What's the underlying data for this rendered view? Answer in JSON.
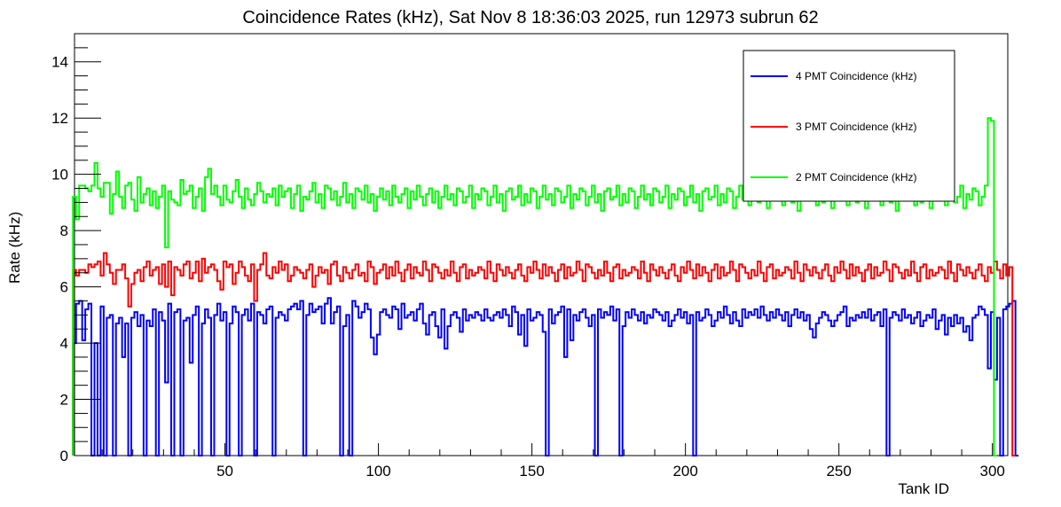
{
  "chart_data": {
    "type": "line",
    "title": "Coincidence Rates (kHz), Sat Nov  8 18:36:03 2025, run 12973 subrun 62",
    "xlabel": "Tank ID",
    "ylabel": "Rate (kHz)",
    "xlim": [
      1,
      305
    ],
    "ylim": [
      0,
      15
    ],
    "x_ticks": [
      50,
      100,
      150,
      200,
      250,
      300
    ],
    "y_ticks": [
      0,
      2,
      4,
      6,
      8,
      10,
      12,
      14
    ],
    "grid": false,
    "legend_position": "top-right",
    "style": "step histogram",
    "series": [
      {
        "name": "4 PMT Coincidence (kHz)",
        "color": "#0000ff",
        "x_start": 1,
        "values": [
          4,
          5.4,
          5.5,
          4.1,
          5.2,
          5.4,
          0,
          4.0,
          0,
          5.3,
          0,
          4.9,
          5.0,
          0,
          4.7,
          4.9,
          3.5,
          4.7,
          0,
          4.9,
          5.1,
          4.6,
          5.0,
          0,
          4.8,
          4.6,
          5.2,
          0,
          5.1,
          4.8,
          2.6,
          5.4,
          0,
          5.1,
          5.2,
          0,
          4.8,
          4.9,
          3.3,
          5.0,
          5.3,
          0,
          4.7,
          5.2,
          4.9,
          0,
          5.0,
          5.4,
          4.8,
          5.1,
          0,
          4.7,
          5.3,
          5.1,
          0,
          5.0,
          5.2,
          4.8,
          5.4,
          0,
          5.1,
          5.0,
          4.7,
          5.2,
          5.3,
          0,
          4.9,
          5.1,
          5.0,
          4.8,
          5.2,
          5.3,
          5.4,
          5.2,
          5.5,
          0,
          5.0,
          5.4,
          5.1,
          5.2,
          5.3,
          4.7,
          5.4,
          5.6,
          4.7,
          5.1,
          5.3,
          0,
          4.6,
          5.0,
          0,
          5.5,
          5.3,
          4.9,
          5.1,
          5.4,
          5.2,
          4.2,
          3.6,
          4.3,
          5.1,
          5.2,
          5.0,
          4.9,
          5.3,
          5.2,
          4.5,
          5.4,
          4.9,
          5.0,
          5.1,
          4.8,
          5.2,
          5.4,
          4.7,
          4.3,
          5.0,
          5.1,
          4.6,
          4.2,
          5.2,
          3.8,
          4.6,
          5.0,
          5.1,
          4.9,
          4.4,
          5.2,
          4.8,
          5.0,
          4.9,
          5.1,
          5.0,
          4.8,
          5.2,
          4.9,
          4.8,
          5.0,
          5.1,
          4.9,
          5.2,
          5.0,
          4.6,
          5.3,
          5.1,
          4.3,
          5.0,
          3.9,
          5.2,
          4.8,
          4.9,
          5.1,
          5.0,
          4.4,
          0,
          5.2,
          4.7,
          5.0,
          5.1,
          5.3,
          3.5,
          5.2,
          4.1,
          5.0,
          4.8,
          5.1,
          5.2,
          4.9,
          4.6,
          5.0,
          0,
          5.2,
          4.9,
          5.1,
          5.0,
          5.3,
          4.8,
          5.2,
          0,
          4.6,
          5.1,
          4.9,
          5.2,
          5.0,
          4.8,
          5.1,
          4.7,
          5.0,
          4.9,
          5.2,
          5.1,
          5.0,
          4.8,
          5.1,
          4.6,
          4.8,
          5.0,
          5.2,
          4.9,
          5.1,
          4.7,
          5.0,
          0,
          5.1,
          4.8,
          4.9,
          5.2,
          5.0,
          4.6,
          4.8,
          5.1,
          4.9,
          5.3,
          5.0,
          4.7,
          5.1,
          4.8,
          4.6,
          5.2,
          4.9,
          5.1,
          5.0,
          5.2,
          4.9,
          5.3,
          5.0,
          4.8,
          5.1,
          4.9,
          5.2,
          5.0,
          4.8,
          5.1,
          4.6,
          5.0,
          5.2,
          4.9,
          5.1,
          4.8,
          5.0,
          4.5,
          4.2,
          4.7,
          4.9,
          5.1,
          5.0,
          4.8,
          4.6,
          4.8,
          5.0,
          5.1,
          5.3,
          4.6,
          4.9,
          4.8,
          5.0,
          4.9,
          5.1,
          4.9,
          5.2,
          4.8,
          5.0,
          5.1,
          4.6,
          5.2,
          0,
          4.9,
          5.1,
          5.0,
          4.8,
          5.2,
          4.9,
          5.0,
          4.7,
          4.9,
          5.1,
          4.6,
          4.8,
          5.0,
          4.9,
          5.2,
          4.5,
          4.8,
          5.0,
          4.3,
          4.9,
          4.6,
          5.0,
          4.7,
          4.9,
          4.4,
          4.6,
          4.1,
          4.9,
          5.0,
          5.3,
          5.2,
          5.0,
          3.1,
          5.1,
          2.7,
          4.9,
          0,
          5.2,
          5.3,
          5.4,
          5.5,
          0
        ]
      },
      {
        "name": "3 PMT Coincidence (kHz)",
        "color": "#ff0000",
        "x_start": 1,
        "values": [
          6.6,
          6.4,
          6.6,
          6.6,
          6.5,
          6.8,
          6.7,
          6.8,
          6.9,
          6.4,
          7.2,
          6.8,
          6.5,
          6.1,
          6.6,
          6.6,
          6.8,
          6.3,
          5.3,
          6.1,
          6.5,
          6.6,
          6.2,
          6.7,
          6.9,
          6.4,
          6.6,
          6.7,
          6.1,
          6.8,
          6.0,
          6.9,
          5.7,
          6.7,
          6.6,
          6.4,
          6.8,
          6.9,
          6.3,
          6.5,
          6.9,
          6.2,
          7.0,
          6.5,
          6.7,
          6.8,
          6.6,
          6.2,
          5.9,
          6.9,
          6.7,
          6.8,
          6.1,
          6.5,
          6.9,
          6.7,
          6.4,
          6.2,
          6.8,
          5.5,
          6.6,
          6.8,
          7.2,
          6.4,
          6.3,
          6.7,
          6.5,
          6.9,
          6.6,
          6.8,
          6.2,
          6.4,
          6.7,
          6.6,
          6.5,
          6.3,
          6.6,
          6.8,
          6.0,
          6.4,
          6.7,
          6.5,
          6.6,
          6.1,
          6.8,
          6.9,
          6.4,
          6.2,
          6.7,
          6.5,
          6.3,
          6.6,
          6.8,
          6.4,
          6.5,
          6.2,
          6.9,
          6.7,
          6.1,
          6.5,
          6.6,
          6.8,
          6.3,
          6.7,
          6.4,
          6.9,
          6.5,
          6.2,
          6.6,
          6.8,
          6.3,
          6.7,
          6.5,
          6.4,
          6.9,
          6.6,
          6.2,
          6.8,
          6.7,
          6.5,
          6.3,
          6.6,
          6.4,
          6.9,
          6.5,
          6.2,
          6.7,
          6.8,
          6.3,
          6.6,
          6.4,
          6.5,
          6.7,
          6.6,
          6.3,
          6.9,
          6.5,
          6.2,
          6.8,
          6.6,
          6.4,
          6.7,
          6.5,
          6.3,
          6.6,
          6.8,
          6.4,
          6.2,
          6.7,
          6.5,
          6.9,
          6.6,
          6.3,
          6.8,
          6.4,
          6.7,
          6.5,
          6.2,
          6.6,
          6.8,
          6.3,
          6.7,
          6.4,
          6.5,
          6.9,
          6.6,
          6.2,
          6.8,
          6.7,
          6.5,
          6.3,
          6.6,
          6.4,
          6.9,
          6.5,
          6.2,
          6.7,
          6.8,
          6.3,
          6.6,
          6.4,
          6.5,
          6.7,
          6.6,
          6.3,
          6.9,
          6.5,
          6.2,
          6.8,
          6.6,
          6.4,
          6.7,
          6.5,
          6.3,
          6.6,
          6.8,
          6.4,
          6.2,
          6.7,
          6.5,
          6.9,
          6.6,
          6.3,
          6.8,
          6.4,
          6.7,
          6.5,
          6.2,
          6.6,
          6.8,
          6.3,
          6.7,
          6.4,
          6.5,
          6.9,
          6.6,
          6.2,
          6.8,
          6.7,
          6.5,
          6.3,
          6.6,
          6.4,
          6.9,
          6.5,
          6.2,
          6.7,
          6.8,
          6.3,
          6.6,
          6.4,
          6.5,
          6.7,
          6.6,
          6.3,
          6.9,
          6.5,
          6.2,
          6.8,
          6.6,
          6.4,
          6.7,
          6.5,
          6.3,
          6.6,
          6.8,
          6.4,
          6.2,
          6.7,
          6.5,
          6.9,
          6.6,
          6.3,
          6.8,
          6.4,
          6.7,
          6.5,
          6.2,
          6.6,
          6.8,
          6.3,
          6.7,
          6.4,
          6.5,
          6.9,
          6.6,
          6.2,
          6.8,
          6.7,
          6.5,
          6.3,
          6.6,
          6.4,
          6.9,
          6.5,
          6.2,
          6.7,
          6.8,
          6.3,
          6.6,
          6.4,
          6.5,
          6.7,
          6.6,
          6.3,
          6.9,
          6.5,
          6.2,
          6.8,
          6.6,
          6.4,
          6.7,
          6.5,
          6.3,
          6.6,
          6.8,
          6.4,
          6.2,
          6.7,
          6.5,
          6.9,
          6.6,
          6.3,
          6.8,
          6.4,
          6.7,
          0
        ]
      },
      {
        "name": "2 PMT Coincidence (kHz)",
        "color": "#00ff00",
        "x_start": 1,
        "values": [
          9.2,
          8.4,
          9.6,
          9.6,
          9.5,
          9.4,
          9.6,
          10.4,
          9.5,
          9.2,
          9.7,
          9.7,
          8.6,
          9.3,
          10.1,
          9.2,
          8.8,
          9.6,
          9.7,
          9.1,
          8.7,
          9.9,
          9.0,
          9.3,
          9.5,
          8.9,
          9.4,
          8.8,
          9.2,
          9.6,
          7.4,
          9.4,
          9.1,
          9.0,
          8.9,
          9.8,
          9.3,
          9.4,
          9.6,
          8.8,
          9.2,
          9.5,
          8.7,
          9.9,
          10.2,
          9.3,
          9.6,
          9.2,
          8.9,
          9.6,
          9.1,
          9.0,
          9.4,
          9.8,
          9.2,
          8.8,
          9.5,
          9.1,
          8.9,
          9.3,
          9.7,
          9.4,
          9.0,
          9.3,
          9.2,
          9.5,
          8.9,
          9.6,
          9.2,
          9.4,
          9.5,
          8.8,
          9.3,
          9.6,
          8.7,
          9.2,
          9.1,
          9.4,
          9.7,
          9.0,
          9.3,
          8.8,
          9.6,
          9.5,
          9.1,
          9.4,
          8.9,
          9.2,
          9.7,
          9.0,
          9.3,
          8.8,
          9.5,
          9.4,
          9.1,
          9.6,
          9.0,
          9.3,
          8.7,
          9.2,
          9.5,
          9.1,
          9.4,
          8.9,
          9.6,
          9.2,
          9.0,
          9.3,
          9.5,
          8.8,
          9.4,
          9.1,
          9.6,
          9.2,
          8.9,
          9.3,
          9.5,
          9.0,
          9.4,
          8.8,
          9.2,
          9.6,
          9.1,
          9.3,
          8.9,
          9.5,
          9.4,
          9.0,
          9.2,
          9.6,
          8.8,
          9.3,
          9.1,
          9.5,
          9.4,
          8.9,
          9.2,
          9.6,
          9.0,
          9.3,
          8.7,
          9.4,
          9.5,
          9.1,
          9.2,
          9.6,
          8.9,
          9.3,
          9.0,
          9.5,
          9.4,
          8.8,
          9.2,
          9.6,
          9.1,
          9.3,
          8.9,
          9.5,
          9.4,
          9.0,
          9.2,
          9.6,
          8.8,
          9.3,
          9.1,
          9.5,
          9.4,
          8.9,
          9.2,
          9.6,
          9.0,
          9.3,
          8.7,
          9.4,
          9.5,
          9.1,
          9.2,
          9.6,
          8.9,
          9.3,
          9.0,
          9.5,
          9.4,
          8.8,
          9.2,
          9.6,
          9.1,
          9.3,
          8.9,
          9.5,
          9.4,
          9.0,
          9.2,
          9.6,
          8.8,
          9.3,
          9.1,
          9.5,
          9.4,
          8.9,
          9.2,
          9.6,
          9.0,
          9.3,
          8.7,
          9.4,
          9.5,
          9.1,
          9.2,
          9.6,
          8.9,
          9.3,
          9.0,
          9.5,
          9.4,
          8.8,
          9.2,
          9.6,
          9.1,
          9.3,
          8.9,
          9.5,
          9.4,
          9.0,
          9.2,
          9.6,
          8.8,
          9.3,
          9.1,
          9.5,
          9.4,
          8.9,
          9.2,
          9.6,
          9.0,
          9.3,
          8.7,
          9.4,
          9.5,
          9.1,
          9.2,
          9.6,
          8.9,
          9.3,
          9.0,
          9.5,
          9.4,
          8.8,
          9.2,
          9.6,
          9.1,
          9.3,
          8.9,
          9.5,
          9.4,
          9.0,
          9.2,
          9.6,
          8.8,
          9.3,
          9.1,
          9.5,
          9.4,
          8.9,
          9.2,
          9.6,
          9.0,
          9.3,
          8.7,
          9.4,
          9.5,
          9.1,
          9.2,
          9.6,
          8.9,
          9.3,
          9.0,
          9.5,
          9.4,
          8.8,
          9.2,
          9.6,
          9.1,
          9.3,
          8.9,
          9.5,
          9.4,
          9.0,
          9.2,
          9.6,
          8.8,
          9.3,
          9.1,
          9.5,
          9.4,
          8.9,
          9.2,
          9.6,
          12.0,
          11.9,
          0
        ]
      }
    ]
  }
}
